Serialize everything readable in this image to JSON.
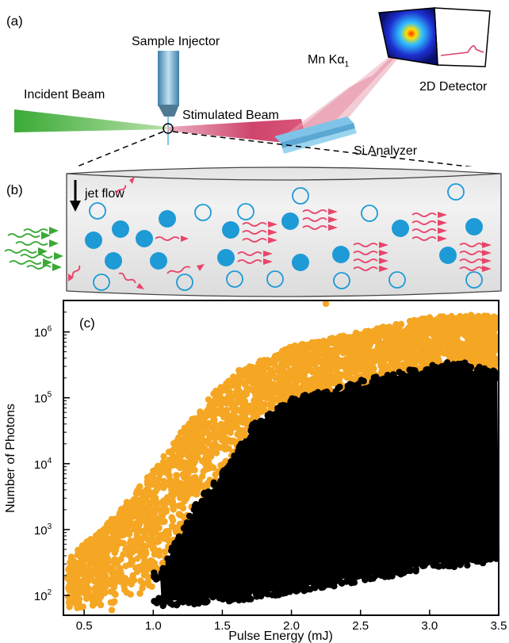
{
  "figure": {
    "panel_a": {
      "label": "(a)",
      "sample_injector": "Sample Injector",
      "incident_beam": "Incident Beam",
      "stimulated_beam": "Stimulated Beam",
      "emission_line": "Mn Kα",
      "emission_subscript": "1",
      "detector": "2D Detector",
      "analyzer": "Si  Analyzer",
      "colors": {
        "incident": "#3aaa35",
        "stimulated": "#d8436b",
        "emission": "#e8a0b0",
        "analyzer": "#7fc4e8",
        "injector": "#6fa8c8"
      }
    },
    "panel_b": {
      "label": "(b)",
      "jet_flow": "jet flow",
      "colors": {
        "filled_atom": "#1e9ad6",
        "empty_atom": "#1e9ad6",
        "photon_out": "#e8456a",
        "photon_in": "#3aaa35"
      }
    },
    "panel_c": {
      "label": "(c)",
      "chart_data": {
        "type": "scatter",
        "xlabel": "Pulse Energy  (mJ)",
        "ylabel": "Number of Photons",
        "xlim": [
          0.35,
          3.5
        ],
        "ylim": [
          50,
          3000000
        ],
        "y_scale": "log",
        "x_ticks": [
          "0.5",
          "1.0",
          "1.5",
          "2.0",
          "2.5",
          "3.0",
          "3.5"
        ],
        "y_ticks": [
          {
            "base": "10",
            "exp": "2"
          },
          {
            "base": "10",
            "exp": "3"
          },
          {
            "base": "10",
            "exp": "4"
          },
          {
            "base": "10",
            "exp": "5"
          },
          {
            "base": "10",
            "exp": "6"
          }
        ],
        "series": [
          {
            "color": "#f5a623",
            "description_points": [
              [
                0.4,
                250
              ],
              [
                0.45,
                90
              ],
              [
                0.5,
                400
              ],
              [
                0.55,
                180
              ],
              [
                0.6,
                800
              ],
              [
                0.65,
                300
              ],
              [
                0.7,
                60
              ],
              [
                0.75,
                1500
              ],
              [
                0.8,
                500
              ],
              [
                0.85,
                2500
              ],
              [
                0.9,
                1200
              ],
              [
                0.95,
                4000
              ],
              [
                1.0,
                2000
              ],
              [
                1.05,
                8000
              ],
              [
                1.1,
                3000
              ],
              [
                1.15,
                12000
              ],
              [
                1.2,
                5000
              ],
              [
                1.25,
                20000
              ],
              [
                1.3,
                8000
              ],
              [
                1.35,
                40000
              ],
              [
                1.4,
                15000
              ],
              [
                1.45,
                80000
              ],
              [
                1.5,
                30000
              ],
              [
                1.6,
                150000
              ],
              [
                1.7,
                200000
              ],
              [
                1.8,
                300000
              ],
              [
                1.9,
                400000
              ],
              [
                2.0,
                500000
              ],
              [
                2.1,
                600000
              ],
              [
                2.25,
                2700000
              ],
              [
                2.3,
                700000
              ],
              [
                2.5,
                900000
              ],
              [
                2.7,
                1000000
              ],
              [
                2.9,
                1300000
              ],
              [
                3.0,
                1500000
              ],
              [
                3.1,
                1700000
              ],
              [
                3.2,
                1600000
              ],
              [
                3.3,
                1800000
              ],
              [
                3.4,
                1700000
              ],
              [
                3.45,
                1000000
              ]
            ]
          },
          {
            "color": "#000000",
            "lower_edge": [
              [
                1.05,
                80
              ],
              [
                1.3,
                90
              ],
              [
                1.6,
                100
              ],
              [
                2.0,
                130
              ],
              [
                2.5,
                200
              ],
              [
                3.0,
                300
              ],
              [
                3.5,
                400
              ]
            ],
            "upper_edge": [
              [
                1.05,
                200
              ],
              [
                1.3,
                2000
              ],
              [
                1.55,
                8000
              ],
              [
                1.7,
                30000
              ],
              [
                2.0,
                80000
              ],
              [
                2.5,
                150000
              ],
              [
                3.0,
                250000
              ],
              [
                3.2,
                300000
              ],
              [
                3.5,
                200000
              ]
            ]
          }
        ]
      }
    }
  }
}
